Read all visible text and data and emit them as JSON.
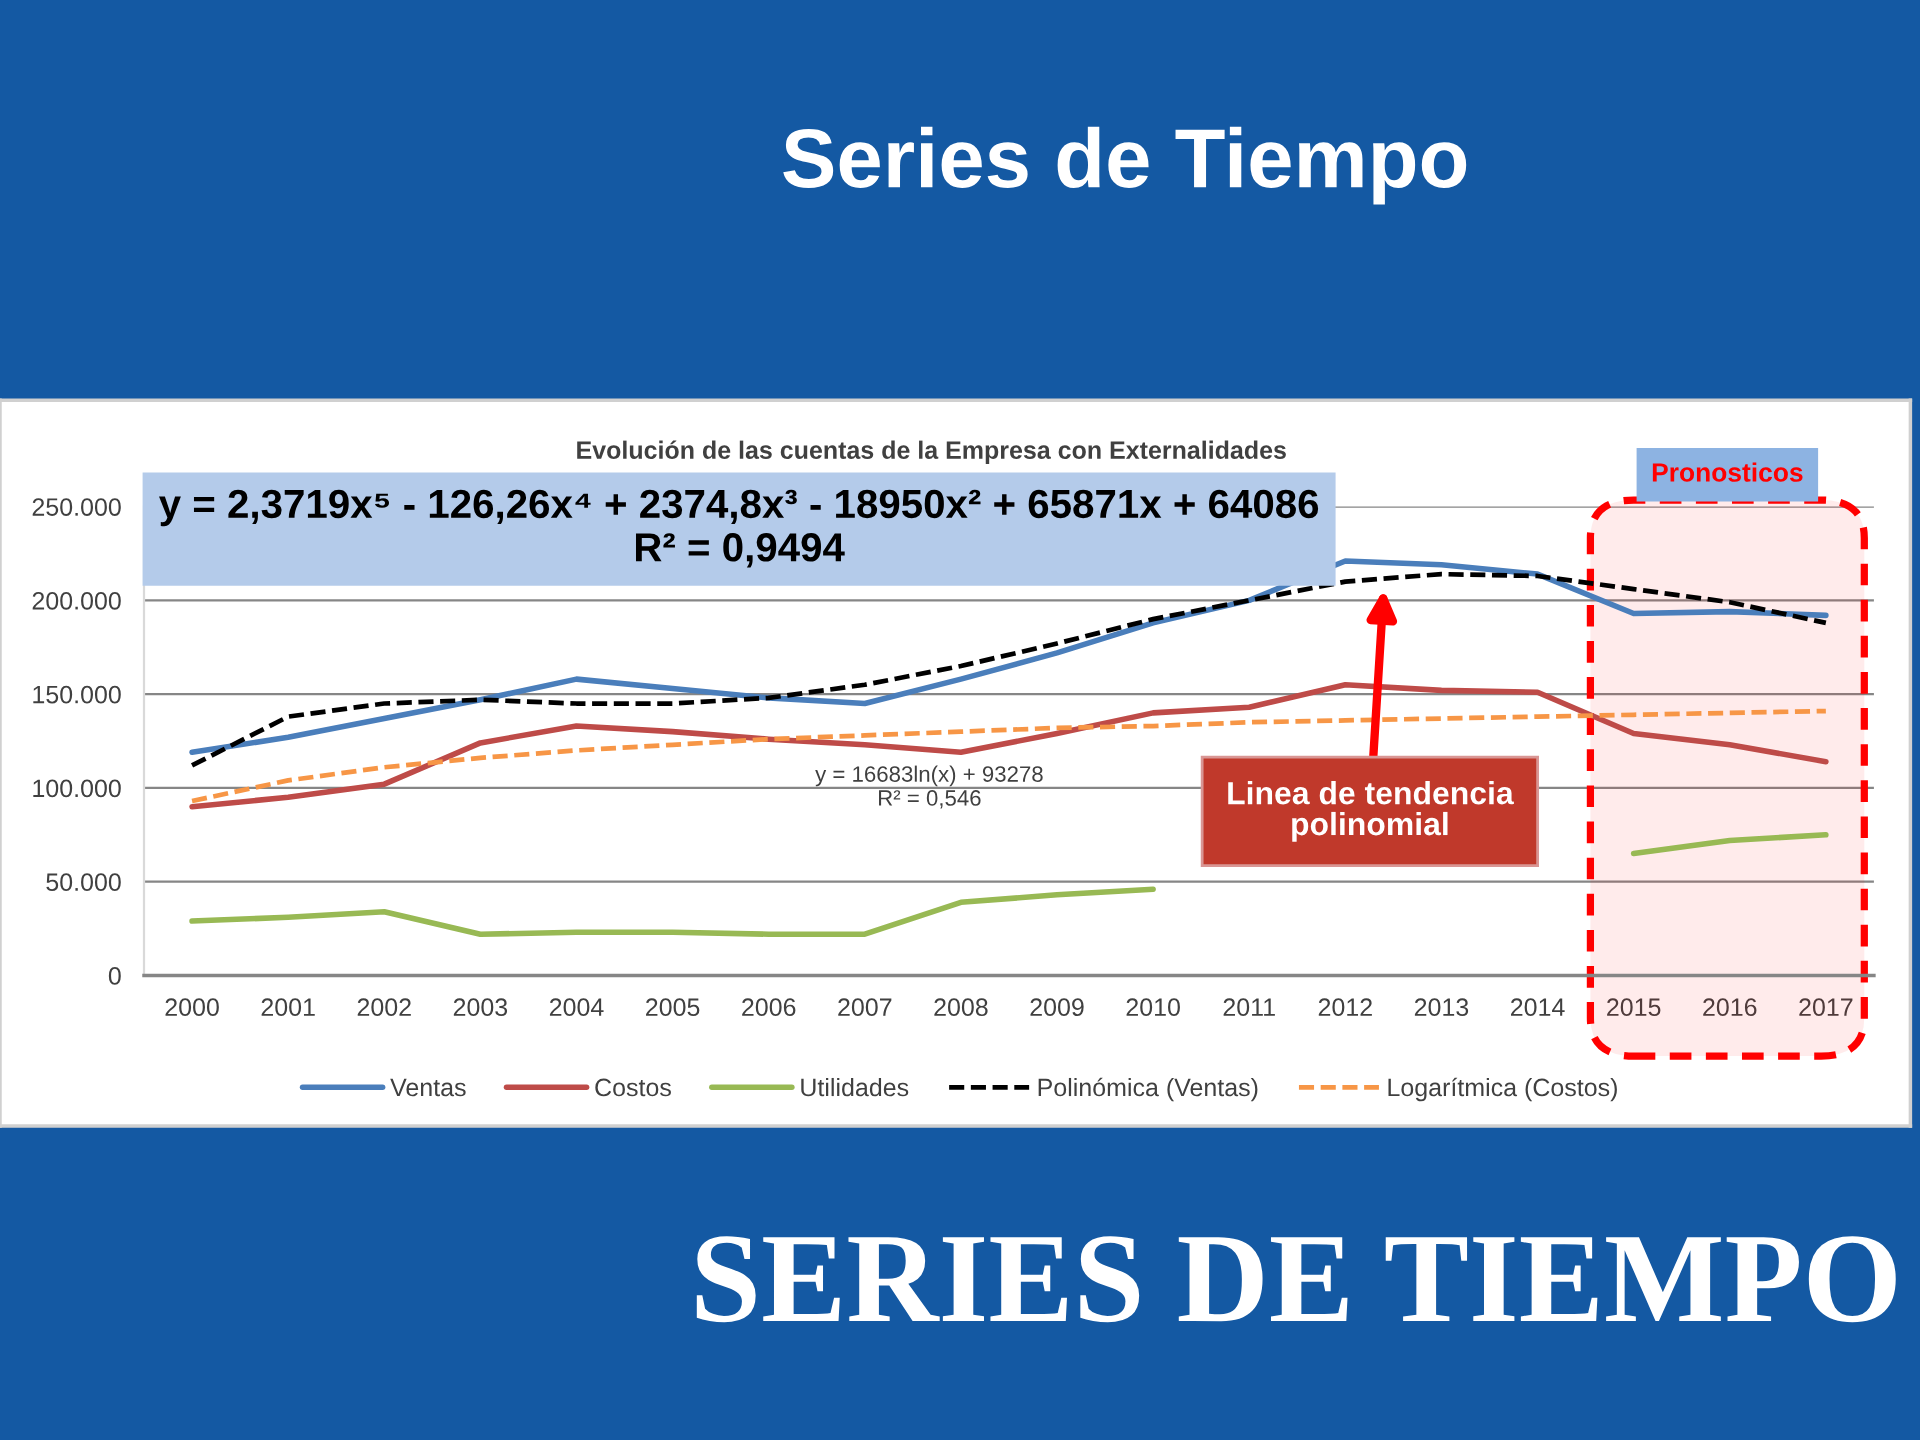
{
  "chart_data": {
    "type": "line",
    "title": "Series de Tiempo",
    "subtitle": "Evolución de las cuentas de la Empresa con Externalidades",
    "x": [
      2000,
      2001,
      2002,
      2003,
      2004,
      2005,
      2006,
      2007,
      2008,
      2009,
      2010,
      2011,
      2012,
      2013,
      2014,
      2015,
      2016,
      2017
    ],
    "xlim": [
      1999.5,
      2017.5
    ],
    "xticks": [
      2000,
      2001,
      2002,
      2003,
      2004,
      2005,
      2006,
      2007,
      2008,
      2009,
      2010,
      2011,
      2012,
      2013,
      2014,
      2015,
      2016,
      2017
    ],
    "ylim": [
      0,
      250000
    ],
    "yticks": [
      0,
      {
        "value": 50000,
        "label": "50.000"
      },
      {
        "value": 100000,
        "label": "100.000"
      },
      {
        "value": 150000,
        "label": "150.000"
      },
      {
        "value": 200000,
        "label": "200.000"
      },
      {
        "value": 250000,
        "label": "250.000"
      }
    ],
    "grid": "y",
    "legend": "bottom",
    "series": [
      {
        "name": "Ventas",
        "color": "#4a7ebb",
        "values": [
          119000,
          127000,
          137000,
          147000,
          158000,
          153000,
          148000,
          145000,
          158000,
          172000,
          188000,
          200000,
          221000,
          219000,
          214000,
          193000,
          194000,
          192000
        ]
      },
      {
        "name": "Costos",
        "color": "#be4b48",
        "values": [
          90000,
          95000,
          102000,
          124000,
          133000,
          130000,
          126000,
          123000,
          119000,
          129000,
          140000,
          143000,
          155000,
          152000,
          151000,
          129000,
          123000,
          114000
        ]
      },
      {
        "name": "Utilidades",
        "color": "#98b954",
        "values": [
          29000,
          31000,
          34000,
          22000,
          23000,
          23000,
          22000,
          22000,
          39000,
          43000,
          46000,
          null,
          null,
          null,
          null,
          65000,
          72000,
          75000
        ]
      },
      {
        "name": "Polinómica (Ventas)",
        "color": "#000000",
        "type": "line",
        "line_style": "dashed",
        "x": [
          2000,
          2001,
          2002,
          2003,
          2004,
          2005,
          2006,
          2007,
          2008,
          2009,
          2010,
          2011,
          2012,
          2013,
          2014,
          2015,
          2016,
          2017
        ],
        "values": [
          112000,
          138000,
          145000,
          147000,
          145000,
          145000,
          148000,
          155000,
          165000,
          177000,
          190000,
          200000,
          210000,
          214000,
          213000,
          206000,
          199000,
          188000
        ]
      },
      {
        "name": "Logarítmica (Costos)",
        "color": "#f79646",
        "type": "line",
        "line_style": "dashed",
        "x": [
          2000,
          2001,
          2002,
          2003,
          2004,
          2005,
          2006,
          2007,
          2008,
          2009,
          2010,
          2011,
          2012,
          2013,
          2014,
          2015,
          2016,
          2017
        ],
        "values": [
          93000,
          104000,
          111000,
          116000,
          120000,
          123000,
          126000,
          128000,
          130000,
          132000,
          133000,
          135000,
          136000,
          137000,
          138000,
          139000,
          140000,
          141000
        ]
      }
    ],
    "bands": [
      {
        "axis": "x",
        "from": 2014.55,
        "to": 2017.4,
        "label": "Pronosticos",
        "color": "#ff0000"
      }
    ],
    "annotations": [
      "y = 2,3719x⁵ - 126,26x⁴ + 2374,8x³ - 18950x² + 65871x + 64086\nR² = 0,9494",
      "y = 16683ln(x) + 93278\nR² = 0,546",
      {
        "text": "Linea de tendencia\npolinomial",
        "x": 2012.4,
        "y": 206000
      },
      "SERIES DE TIEMPO"
    ]
  }
}
